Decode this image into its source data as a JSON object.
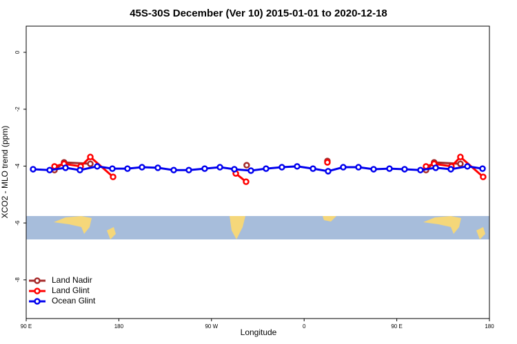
{
  "chart_data": {
    "type": "line",
    "title": "45S-30S December (Ver 10)   2015-01-01 to 2020-12-18",
    "x_label": "Longitude",
    "y_label": "XCO2 - MLO trend (ppm)",
    "xlim": [
      90,
      540
    ],
    "ylim": [
      -9.36,
      0.92
    ],
    "xticks": [
      {
        "value": 90,
        "label": "90 E"
      },
      {
        "value": 180,
        "label": "180"
      },
      {
        "value": 270,
        "label": "90 W"
      },
      {
        "value": 360,
        "label": "0"
      },
      {
        "value": 450,
        "label": "90 E"
      },
      {
        "value": 540,
        "label": "180"
      }
    ],
    "yticks": [
      0,
      -2,
      -4,
      -6,
      -8
    ],
    "legend": "bottom-left",
    "series": [
      {
        "name": "Land Nadir",
        "color": "#a52a2a",
        "x": [
          117.5,
          126.8,
          152.3,
          null,
          304.2,
          null,
          382.6,
          null,
          478.4,
          486.3,
          511.8
        ],
        "values": [
          -4.14,
          -3.87,
          -3.92,
          null,
          -3.97,
          null,
          -3.82,
          null,
          -4.14,
          -3.87,
          -3.92
        ]
      },
      {
        "name": "Land Glint",
        "color": "#ff0000",
        "x": [
          117.5,
          126.8,
          142.9,
          152.3,
          174.4,
          null,
          293.6,
          303.6,
          null,
          382.6,
          null,
          478.4,
          486.3,
          503.1,
          511.8,
          533.9
        ],
        "values": [
          -4.01,
          -3.92,
          -4.01,
          -3.68,
          -4.38,
          null,
          -4.26,
          -4.55,
          null,
          -3.87,
          null,
          -4.01,
          -3.92,
          -4.01,
          -3.68,
          -4.38
        ]
      },
      {
        "name": "Ocean Glint",
        "color": "#0000ee",
        "x": [
          96.7,
          112.8,
          128.2,
          142.2,
          159.0,
          173.7,
          188.4,
          202.5,
          217.9,
          233.3,
          248.0,
          263.4,
          278.2,
          292.2,
          308.3,
          323.0,
          338.4,
          353.2,
          368.6,
          383.3,
          398.0,
          412.8,
          427.5,
          442.9,
          457.6,
          473.0,
          487.8,
          502.5,
          518.6,
          533.3
        ],
        "values": [
          -4.11,
          -4.14,
          -4.06,
          -4.14,
          -4.01,
          -4.09,
          -4.09,
          -4.04,
          -4.06,
          -4.14,
          -4.14,
          -4.09,
          -4.04,
          -4.11,
          -4.16,
          -4.09,
          -4.04,
          -4.01,
          -4.09,
          -4.18,
          -4.04,
          -4.04,
          -4.11,
          -4.09,
          -4.11,
          -4.14,
          -4.06,
          -4.11,
          -4.01,
          -4.09
        ]
      }
    ]
  }
}
